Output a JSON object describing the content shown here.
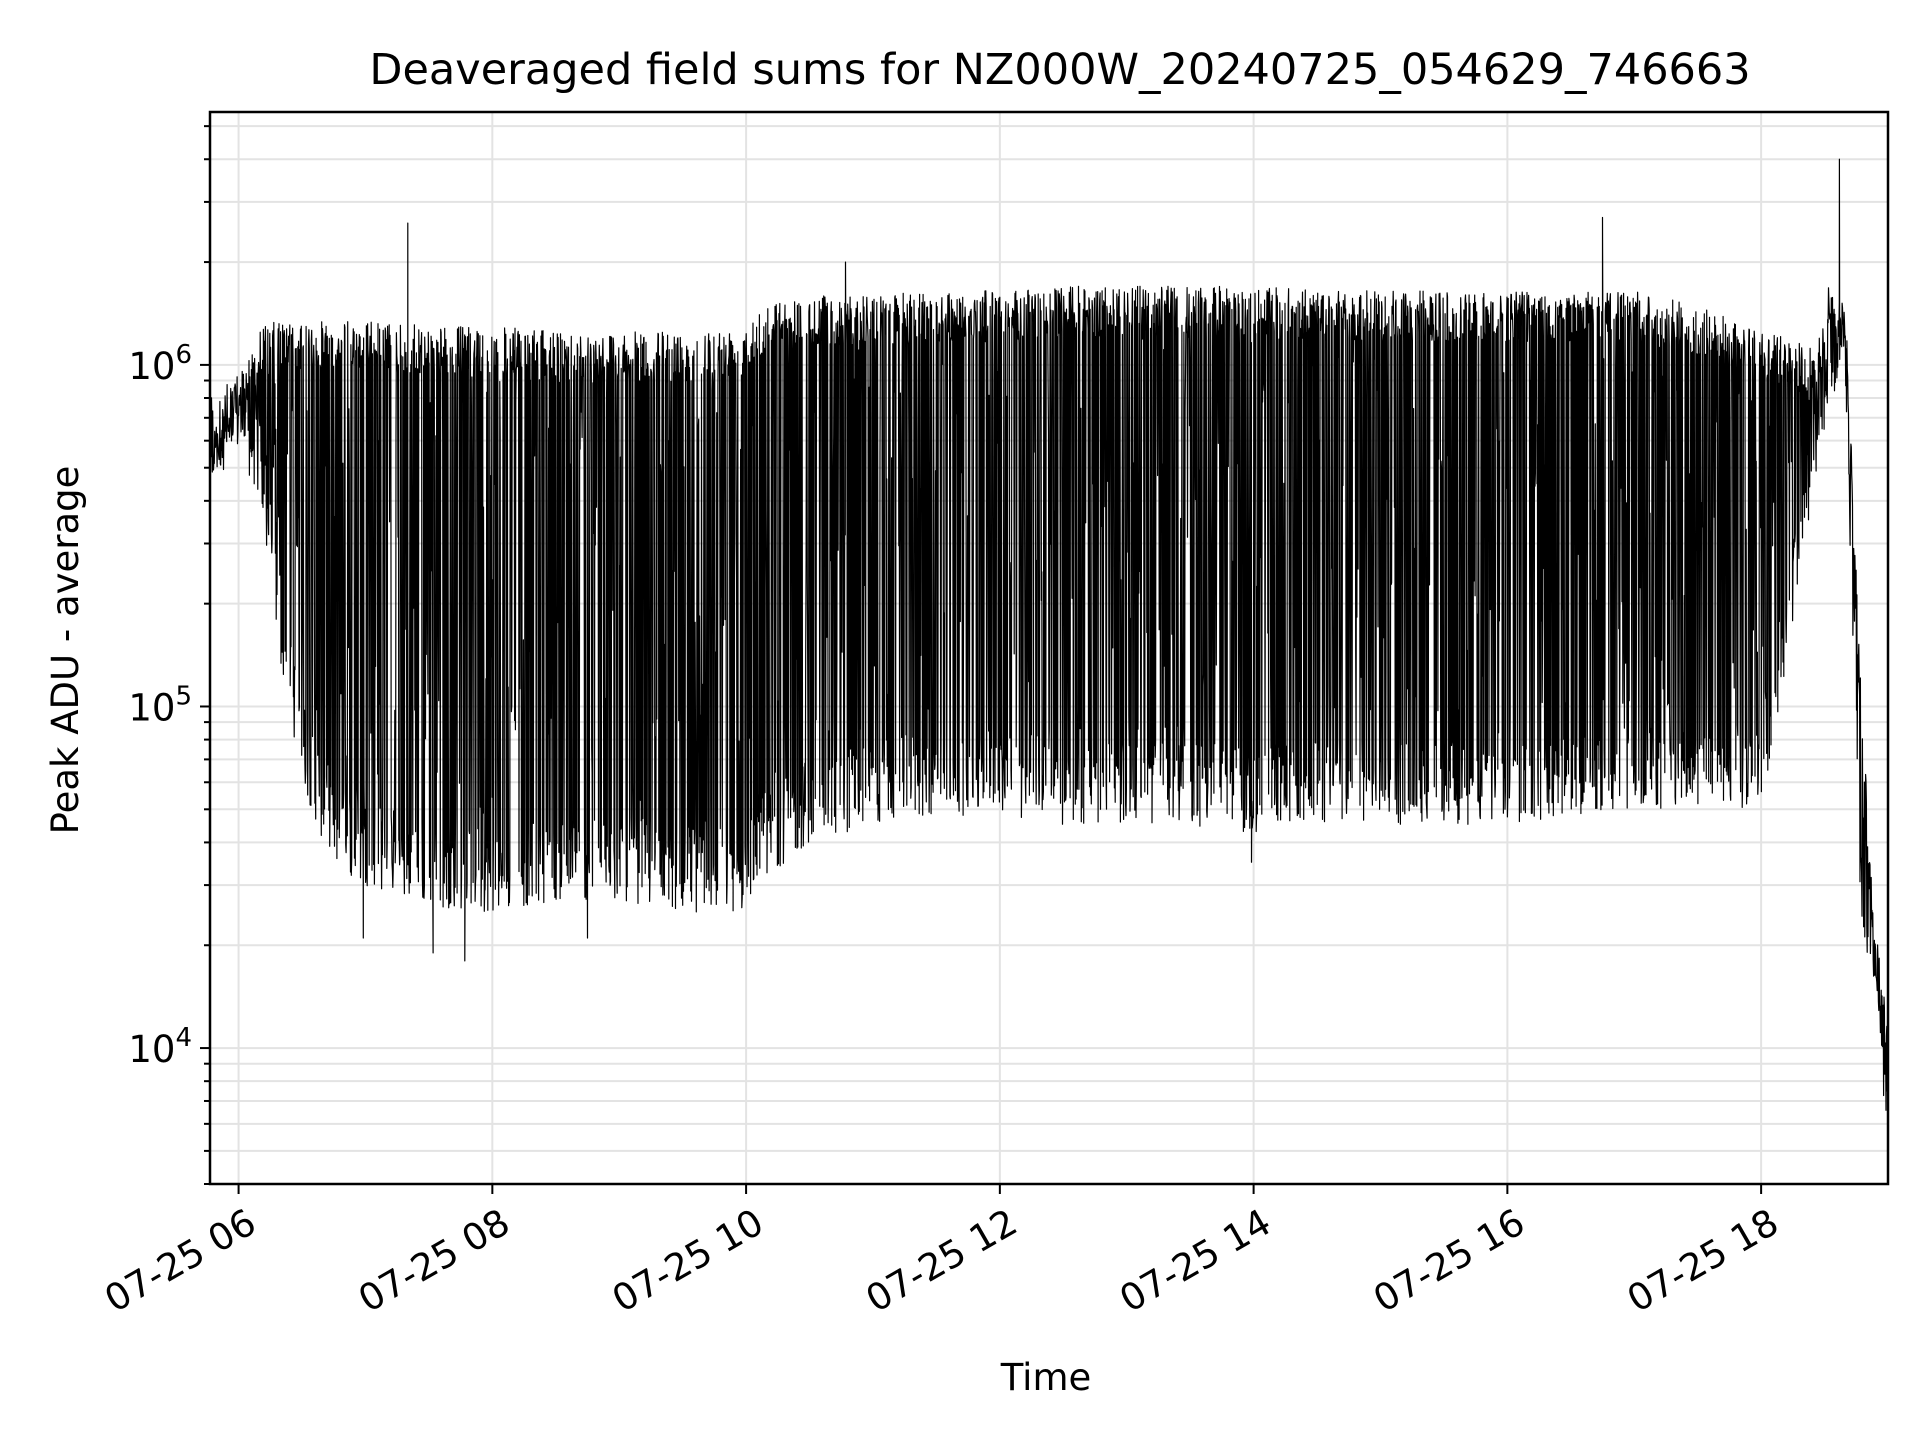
{
  "chart_data": {
    "type": "line",
    "title": "Deaveraged field sums for NZ000W_20240725_054629_746663",
    "xlabel": "Time",
    "ylabel": "Peak ADU - average",
    "yscale": "log",
    "ylim": [
      4000,
      5500000
    ],
    "xlim": [
      "2024-07-25T05:46:29",
      "2024-07-25T19:00:00"
    ],
    "grid": true,
    "line_color": "#000000",
    "x_tick_labels": [
      "07-25 06",
      "07-25 08",
      "07-25 10",
      "07-25 12",
      "07-25 14",
      "07-25 16",
      "07-25 18"
    ],
    "x_tick_times": [
      "2024-07-25T06:00:00",
      "2024-07-25T08:00:00",
      "2024-07-25T10:00:00",
      "2024-07-25T12:00:00",
      "2024-07-25T14:00:00",
      "2024-07-25T16:00:00",
      "2024-07-25T18:00:00"
    ],
    "y_tick_values": [
      10000,
      100000,
      1000000
    ],
    "y_tick_labels": [
      {
        "base": "10",
        "exp": "4"
      },
      {
        "base": "10",
        "exp": "5"
      },
      {
        "base": "10",
        "exp": "6"
      }
    ],
    "series": [
      {
        "envelope": {
          "time": [
            "2024-07-25T05:47",
            "2024-07-25T06:00",
            "2024-07-25T06:10",
            "2024-07-25T06:20",
            "2024-07-25T06:30",
            "2024-07-25T06:40",
            "2024-07-25T06:50",
            "2024-07-25T07:00",
            "2024-07-25T07:30",
            "2024-07-25T08:00",
            "2024-07-25T08:30",
            "2024-07-25T09:00",
            "2024-07-25T09:30",
            "2024-07-25T09:58",
            "2024-07-25T10:05",
            "2024-07-25T10:30",
            "2024-07-25T11:00",
            "2024-07-25T11:30",
            "2024-07-25T12:00",
            "2024-07-25T12:30",
            "2024-07-25T13:00",
            "2024-07-25T13:30",
            "2024-07-25T14:00",
            "2024-07-25T14:30",
            "2024-07-25T15:00",
            "2024-07-25T15:30",
            "2024-07-25T16:00",
            "2024-07-25T16:30",
            "2024-07-25T17:00",
            "2024-07-25T17:30",
            "2024-07-25T18:00",
            "2024-07-25T18:25",
            "2024-07-25T18:32",
            "2024-07-25T18:40",
            "2024-07-25T18:47",
            "2024-07-25T18:53",
            "2024-07-25T19:00"
          ],
          "upper": [
            650000,
            900000,
            1300000,
            1350000,
            1300000,
            1350000,
            1350000,
            1350000,
            1300000,
            1300000,
            1250000,
            1250000,
            1250000,
            1300000,
            1500000,
            1600000,
            1600000,
            1650000,
            1650000,
            1700000,
            1700000,
            1700000,
            1700000,
            1650000,
            1650000,
            1650000,
            1650000,
            1650000,
            1650000,
            1500000,
            1250000,
            1150000,
            1700000,
            1500000,
            120000,
            25000,
            12000
          ],
          "lower": [
            450000,
            550000,
            400000,
            130000,
            60000,
            40000,
            32000,
            30000,
            26000,
            25000,
            27000,
            27000,
            25000,
            25000,
            30000,
            40000,
            45000,
            48000,
            48000,
            45000,
            45000,
            45000,
            42000,
            45000,
            45000,
            45000,
            45000,
            48000,
            50000,
            50000,
            50000,
            400000,
            800000,
            800000,
            25000,
            15000,
            5000
          ]
        },
        "spikes": [
          {
            "time": "2024-07-25T07:20",
            "value": 2600000
          },
          {
            "time": "2024-07-25T10:47",
            "value": 2000000
          },
          {
            "time": "2024-07-25T16:45",
            "value": 2700000
          },
          {
            "time": "2024-07-25T18:37",
            "value": 4000000
          }
        ],
        "dips": [
          {
            "time": "2024-07-25T06:59",
            "value": 21000
          },
          {
            "time": "2024-07-25T07:32",
            "value": 19000
          },
          {
            "time": "2024-07-25T07:47",
            "value": 18000
          },
          {
            "time": "2024-07-25T08:45",
            "value": 21000
          },
          {
            "time": "2024-07-25T13:59",
            "value": 35000
          }
        ]
      }
    ]
  }
}
